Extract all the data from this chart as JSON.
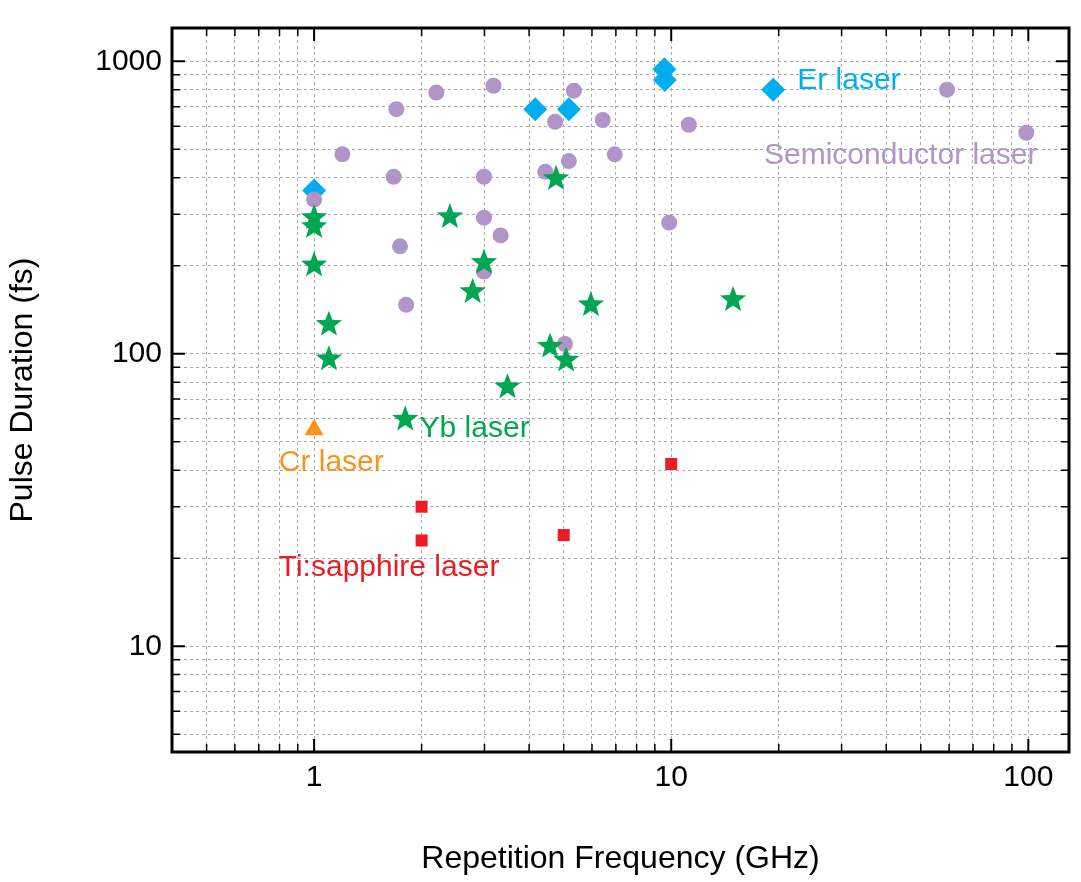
{
  "chart_data": {
    "type": "scatter",
    "xlabel": "Repetition Frequency (GHz)",
    "ylabel": "Pulse Duration (fs)",
    "log": "xy",
    "grid": true,
    "xlim": [
      0.4,
      130
    ],
    "ylim": [
      4.35,
      1300
    ],
    "xticks": [
      {
        "value": 0.5,
        "label": null
      },
      {
        "value": 0.6,
        "label": null
      },
      {
        "value": 0.7,
        "label": null
      },
      {
        "value": 0.8,
        "label": null
      },
      {
        "value": 0.9,
        "label": null
      },
      1,
      {
        "value": 2,
        "label": null
      },
      {
        "value": 3,
        "label": null
      },
      {
        "value": 4,
        "label": null
      },
      {
        "value": 5,
        "label": null
      },
      {
        "value": 6,
        "label": null
      },
      {
        "value": 7,
        "label": null
      },
      {
        "value": 8,
        "label": null
      },
      {
        "value": 9,
        "label": null
      },
      10,
      {
        "value": 20,
        "label": null
      },
      {
        "value": 30,
        "label": null
      },
      {
        "value": 40,
        "label": null
      },
      {
        "value": 50,
        "label": null
      },
      {
        "value": 60,
        "label": null
      },
      {
        "value": 70,
        "label": null
      },
      {
        "value": 80,
        "label": null
      },
      {
        "value": 90,
        "label": null
      },
      100
    ],
    "yticks": [
      {
        "value": 5,
        "label": null
      },
      {
        "value": 6,
        "label": null
      },
      {
        "value": 7,
        "label": null
      },
      {
        "value": 8,
        "label": null
      },
      {
        "value": 9,
        "label": null
      },
      10,
      {
        "value": 20,
        "label": null
      },
      {
        "value": 30,
        "label": null
      },
      {
        "value": 40,
        "label": null
      },
      {
        "value": 50,
        "label": null
      },
      {
        "value": 60,
        "label": null
      },
      {
        "value": 70,
        "label": null
      },
      {
        "value": 80,
        "label": null
      },
      {
        "value": 90,
        "label": null
      },
      100,
      {
        "value": 200,
        "label": null
      },
      {
        "value": 300,
        "label": null
      },
      {
        "value": 400,
        "label": null
      },
      {
        "value": 500,
        "label": null
      },
      {
        "value": 600,
        "label": null
      },
      {
        "value": 700,
        "label": null
      },
      {
        "value": 800,
        "label": null
      },
      {
        "value": 900,
        "label": null
      },
      1000
    ],
    "series": [
      {
        "name": "Semiconductor laser",
        "color": "#b195c8",
        "marker": "circle",
        "x": [
          1.7,
          2.2,
          3.18,
          5.34,
          4.73,
          6.43,
          1.2,
          6.95,
          5.17,
          1.67,
          2.99,
          4.44,
          1,
          2.99,
          3.33,
          1.74,
          2.99,
          1.81,
          5.04,
          11.2,
          9.87,
          59.2,
          98.7
        ],
        "values": [
          686,
          782,
          825,
          794,
          621,
          630,
          481,
          481,
          456,
          403,
          403,
          419,
          337,
          292,
          254,
          233,
          191,
          147,
          108,
          607,
          281,
          800,
          570
        ]
      },
      {
        "name": "Er laser",
        "color": "#00aeef",
        "marker": "diamond",
        "x": [
          4.16,
          5.17,
          1,
          9.57,
          9.6,
          19.3
        ],
        "values": [
          686,
          686,
          362,
          940,
          863,
          800
        ]
      },
      {
        "name": "Yb laser",
        "color": "#00a651",
        "marker": "star",
        "x": [
          1,
          1,
          1,
          1.1,
          1.1,
          2.4,
          2.99,
          2.78,
          4.76,
          5.96,
          4.58,
          5.08,
          3.48,
          14.9,
          1.8
        ],
        "values": [
          292,
          272,
          201,
          126,
          96,
          294,
          205,
          163,
          397,
          147,
          106,
          95,
          77,
          153,
          59.7
        ]
      },
      {
        "name": "Cr laser",
        "color": "#f7941d",
        "marker": "triangle",
        "x": [
          1
        ],
        "values": [
          55
        ]
      },
      {
        "name": "Ti:sapphire laser",
        "color": "#ed1c24",
        "marker": "square",
        "x": [
          2,
          2,
          5,
          10
        ],
        "values": [
          30,
          23,
          24,
          42
        ]
      }
    ]
  }
}
